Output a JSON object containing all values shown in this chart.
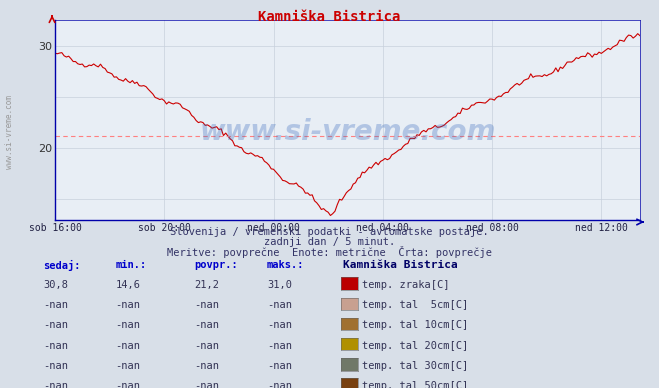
{
  "title": "Kamniška Bistrica",
  "bg_color": "#d8dfe8",
  "plot_bg_color": "#e8eef5",
  "grid_color_v": "#c8d0dc",
  "grid_color_h": "#c8d0dc",
  "line_color": "#cc0000",
  "avg_line_color": "#ff8080",
  "avg_line_value": 21.2,
  "ylim_min": 13.0,
  "ylim_max": 32.5,
  "ytick_vals": [
    20,
    30
  ],
  "xlabel_ticks": [
    "sob 16:00",
    "sob 20:00",
    "ned 00:00",
    "ned 04:00",
    "ned 08:00",
    "ned 12:00"
  ],
  "subtitle1": "Slovenija / vremenski podatki - avtomatske postaje.",
  "subtitle2": "zadnji dan / 5 minut.",
  "subtitle3": "Meritve: povprečne  Enote: metrične  Črta: povprečje",
  "table_headers": [
    "sedaj:",
    "min.:",
    "povpr.:",
    "maks.:"
  ],
  "table_row1": [
    "30,8",
    "14,6",
    "21,2",
    "31,0"
  ],
  "table_nan": [
    "-nan",
    "-nan",
    "-nan",
    "-nan"
  ],
  "legend_items": [
    {
      "label": "temp. zraka[C]",
      "color": "#bb0000"
    },
    {
      "label": "temp. tal  5cm[C]",
      "color": "#c8a090"
    },
    {
      "label": "temp. tal 10cm[C]",
      "color": "#a07030"
    },
    {
      "label": "temp. tal 20cm[C]",
      "color": "#b09000"
    },
    {
      "label": "temp. tal 30cm[C]",
      "color": "#707868"
    },
    {
      "label": "temp. tal 50cm[C]",
      "color": "#784010"
    }
  ],
  "station_label": "Kamniška Bistrica",
  "watermark": "www.si-vreme.com",
  "left_watermark": "www.si-vreme.com"
}
